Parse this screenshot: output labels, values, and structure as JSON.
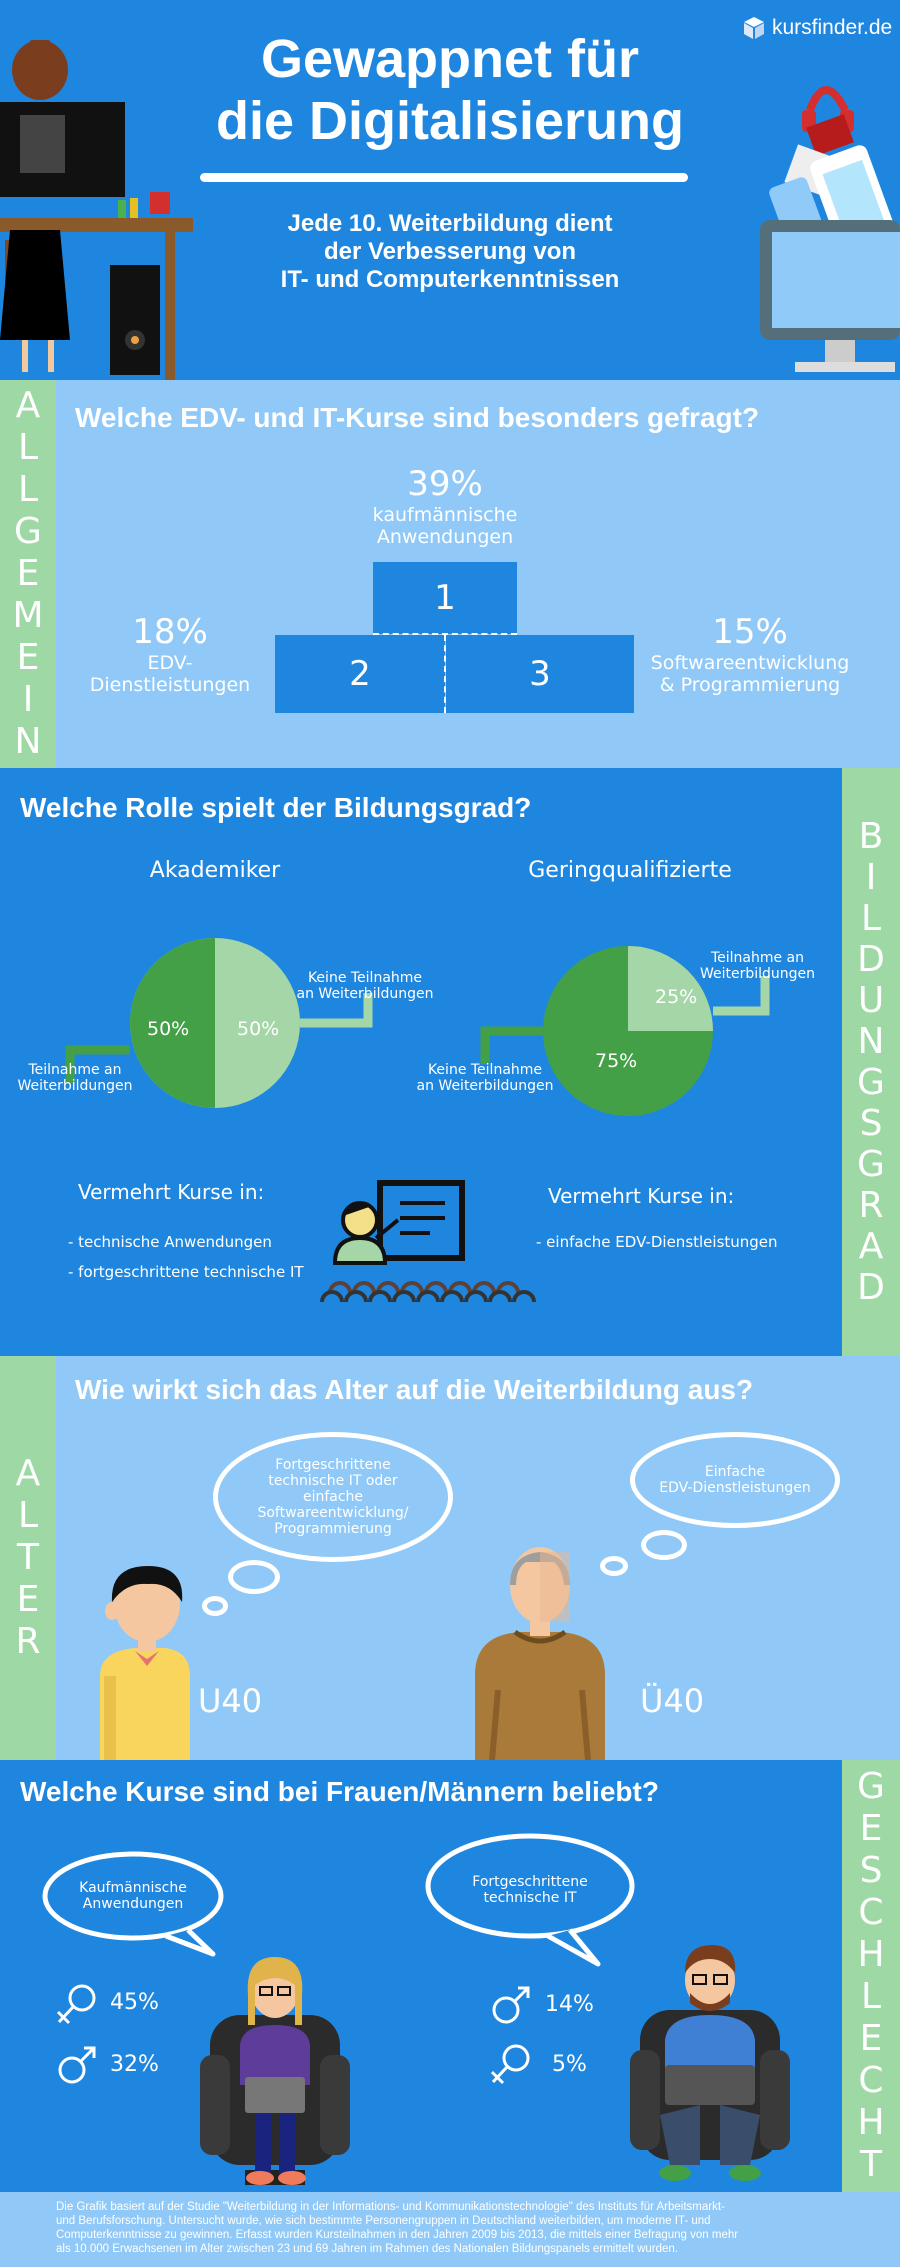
{
  "brand": "kursfinder.de",
  "header": {
    "title_line1": "Gewappnet für",
    "title_line2": "die Digitalisierung",
    "subtitle_line1": "Jede 10. Weiterbildung dient",
    "subtitle_line2": "der Verbesserung von",
    "subtitle_line3": "IT- und Computerkenntnissen"
  },
  "allgemein": {
    "strip": [
      "A",
      "L",
      "L",
      "G",
      "E",
      "M",
      "E",
      "I",
      "N"
    ],
    "title": "Welche EDV- und IT-Kurse sind besonders gefragt?",
    "first": {
      "pct": "39%",
      "label1": "kaufmännische",
      "label2": "Anwendungen",
      "rank": "1"
    },
    "second": {
      "pct": "18%",
      "label1": "EDV-",
      "label2": "Dienstleistungen",
      "rank": "2"
    },
    "third": {
      "pct": "15%",
      "label1": "Softwareentwicklung",
      "label2": "& Programmierung",
      "rank": "3"
    }
  },
  "bildung": {
    "strip": [
      "B",
      "I",
      "L",
      "D",
      "U",
      "N",
      "G",
      "S",
      "G",
      "R",
      "A",
      "D"
    ],
    "title": "Welche Rolle spielt der Bildungsgrad?",
    "akademiker": {
      "heading": "Akademiker",
      "left_pct": "50%",
      "right_pct": "50%",
      "right_label1": "Keine Teilnahme",
      "right_label2": "an Weiterbildungen",
      "left_label1": "Teilnahme an",
      "left_label2": "Weiterbildungen",
      "more": "Vermehrt Kurse in:",
      "items": [
        "- technische Anwendungen",
        "- fortgeschrittene technische IT"
      ]
    },
    "gering": {
      "heading": "Geringqualifizierte",
      "small_pct": "25%",
      "big_pct": "75%",
      "right_label1": "Teilnahme an",
      "right_label2": "Weiterbildungen",
      "left_label1": "Keine Teilnahme",
      "left_label2": "an Weiterbildungen",
      "more": "Vermehrt Kurse in:",
      "items": [
        "- einfache EDV-Dienstleistungen"
      ]
    },
    "colors": {
      "dark_green": "#43a047",
      "light_green": "#a5d6a7"
    }
  },
  "alter": {
    "strip": [
      "A",
      "L",
      "T",
      "E",
      "R"
    ],
    "title": "Wie wirkt sich das Alter auf die Weiterbildung aus?",
    "young_bubble": [
      "Fortgeschrittene",
      "technische IT oder",
      "einfache",
      "Softwareentwicklung/",
      "Programmierung"
    ],
    "old_bubble": [
      "Einfache",
      "EDV-Dienstleistungen"
    ],
    "young_label": "U40",
    "old_label": "Ü40"
  },
  "geschlecht": {
    "strip": [
      "G",
      "E",
      "S",
      "C",
      "H",
      "L",
      "E",
      "C",
      "H",
      "T"
    ],
    "title": "Welche Kurse sind bei Frauen/Männern beliebt?",
    "women_bubble": [
      "Kaufmännische",
      "Anwendungen"
    ],
    "men_bubble": [
      "Fortgeschrittene",
      "technische IT"
    ],
    "left_female_pct": "45%",
    "left_male_pct": "32%",
    "right_male_pct": "14%",
    "right_female_pct": "5%",
    "female_icon": "female-symbol-icon",
    "male_icon": "male-symbol-icon"
  },
  "footer": {
    "line1": "Die Grafik basiert auf der Studie \"Weiterbildung in der Informations- und Kommunikationstechnologie\" des Instituts für Arbeitsmarkt-",
    "line2": "und Berufsforschung. Untersucht wurde, wie sich bestimmte Personengruppen in Deutschland weiterbilden, um moderne IT- und",
    "line3": "Computerkenntnisse zu gewinnen. Erfasst wurden Kursteilnahmen in den Jahren 2009 bis 2013, die mittels einer Befragung von mehr",
    "line4": "als 10.000 Erwachsenen im Alter zwischen 23 und 69 Jahren im Rahmen des Nationalen Bildungspanels ermittelt wurden."
  }
}
